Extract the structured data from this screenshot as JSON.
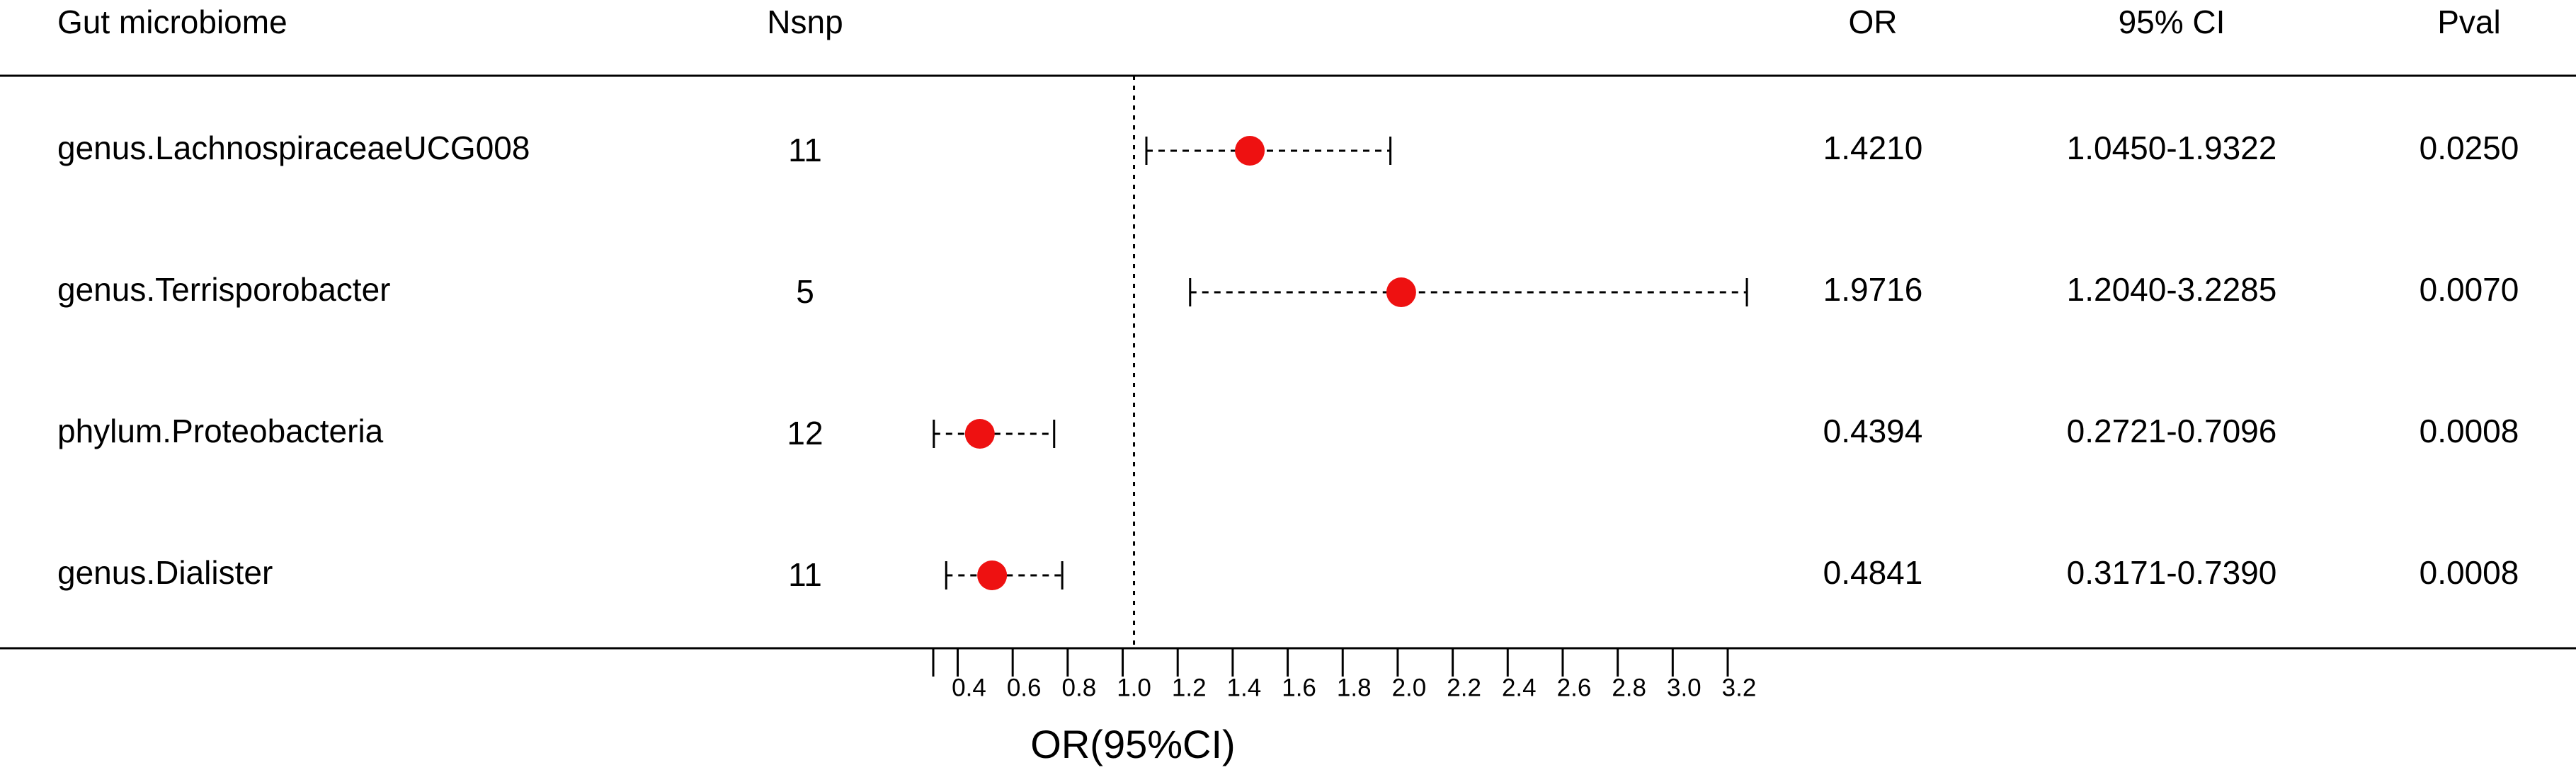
{
  "chart_data": {
    "type": "forest",
    "headers": {
      "name": "Gut microbiome",
      "nsnp": "Nsnp",
      "or": "OR",
      "ci": "95% CI",
      "pval": "Pval"
    },
    "categories": [
      "genus.LachnospiraceaeUCG008",
      "genus.Terrisporobacter",
      "phylum.Proteobacteria",
      "genus.Dialister"
    ],
    "nsnp": [
      11,
      5,
      12,
      11
    ],
    "values": [
      1.421,
      1.9716,
      0.4394,
      0.4841
    ],
    "value_labels": [
      "1.4210",
      "1.9716",
      "0.4394",
      "0.4841"
    ],
    "lower": [
      1.045,
      1.204,
      0.2721,
      0.3171
    ],
    "upper": [
      1.9322,
      3.2285,
      0.7096,
      0.739
    ],
    "ci_labels": [
      "1.0450-1.9322",
      "1.2040-3.2285",
      "0.2721-0.7096",
      "0.3171-0.7390"
    ],
    "pval_labels": [
      "0.0250",
      "0.0070",
      "0.0008",
      "0.0008"
    ],
    "color": "#ee1111",
    "ref_line": 1,
    "xlabel": "OR(95%CI)",
    "xlim": [
      0.27,
      3.2
    ],
    "xticks": [
      0.4,
      0.6,
      0.8,
      {
        "value": 1,
        "label": "1.0"
      },
      1.2,
      1.4,
      1.6,
      1.8,
      {
        "value": 2,
        "label": "2.0"
      },
      2.2,
      2.4,
      2.6,
      2.8,
      {
        "value": 3,
        "label": "3.0"
      },
      3.2
    ]
  }
}
